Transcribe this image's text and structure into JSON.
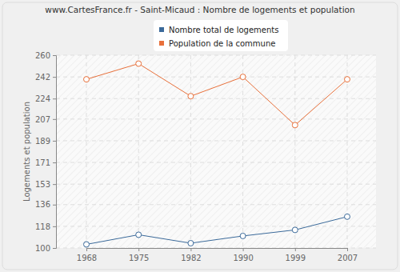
{
  "chart_data": {
    "type": "line",
    "title": "www.CartesFrance.fr - Saint-Micaud : Nombre de logements et population",
    "y_label": "Logements et population",
    "categories": [
      "1968",
      "1975",
      "1982",
      "1990",
      "1999",
      "2007"
    ],
    "series": [
      {
        "name": "Nombre total de logements",
        "color": "#3b6a9a",
        "values": [
          103,
          111,
          104,
          110,
          115,
          126
        ],
        "marker": "circle"
      },
      {
        "name": "Population de la commune",
        "color": "#e8703a",
        "values": [
          240,
          253,
          226,
          242,
          202,
          240
        ],
        "marker": "circle"
      }
    ],
    "ylim": [
      100,
      260
    ],
    "yticks": [
      100,
      118,
      136,
      153,
      171,
      189,
      207,
      224,
      242,
      260
    ],
    "grid": true,
    "legend": "top"
  }
}
